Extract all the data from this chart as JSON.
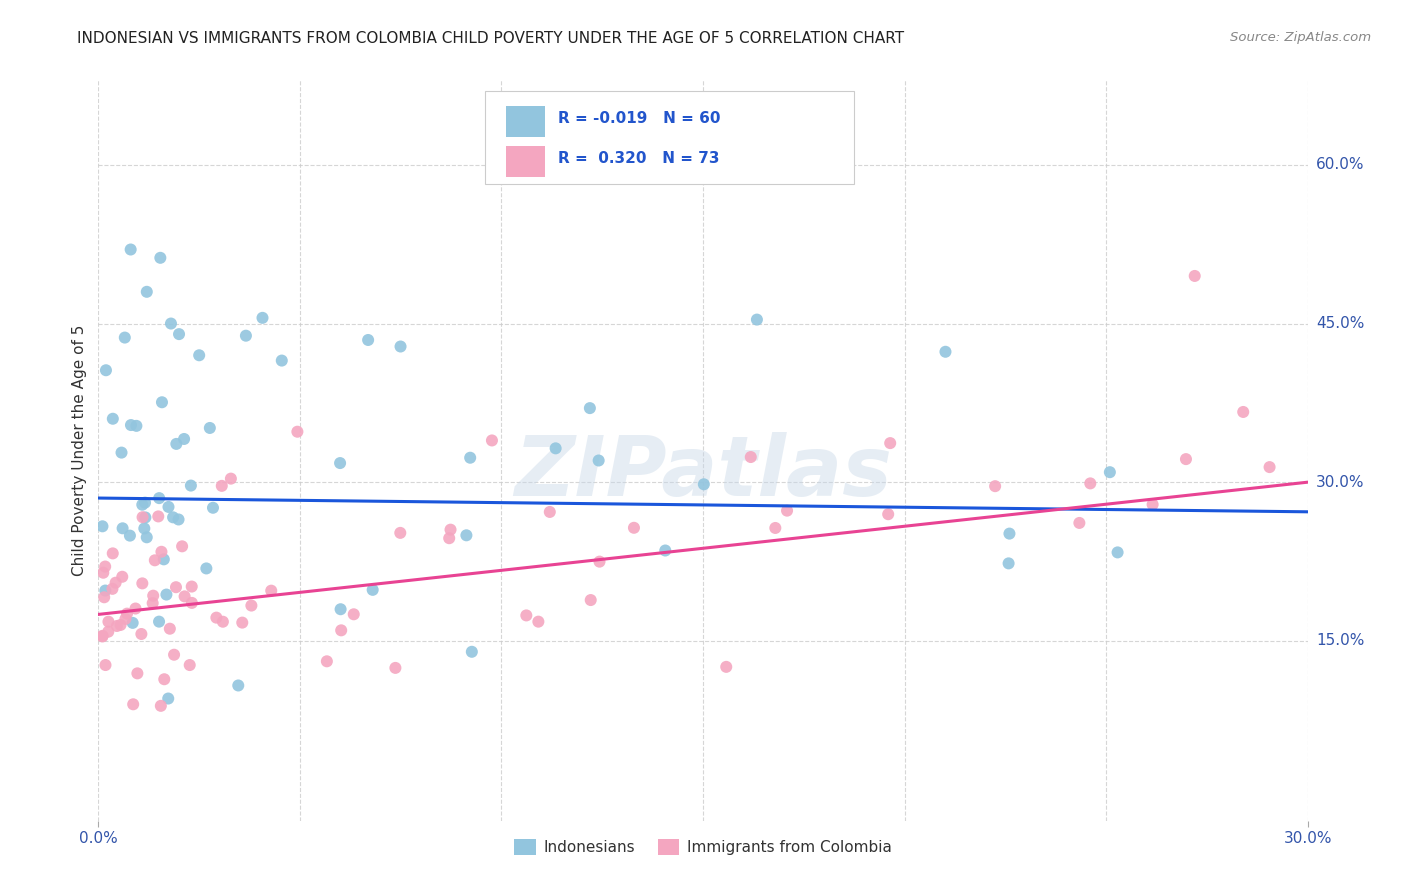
{
  "title": "INDONESIAN VS IMMIGRANTS FROM COLOMBIA CHILD POVERTY UNDER THE AGE OF 5 CORRELATION CHART",
  "source": "Source: ZipAtlas.com",
  "ylabel": "Child Poverty Under the Age of 5",
  "xlim": [
    0.0,
    0.3
  ],
  "ylim": [
    -0.02,
    0.68
  ],
  "blue_color": "#92c5de",
  "pink_color": "#f4a6c0",
  "blue_line_color": "#1a56db",
  "pink_line_color": "#e84393",
  "grid_color": "#cccccc",
  "background_color": "#ffffff",
  "watermark_text": "ZIPatlas",
  "legend_label1": "Indonesians",
  "legend_label2": "Immigrants from Colombia",
  "ytick_vals": [
    0.15,
    0.3,
    0.45,
    0.6
  ],
  "ytick_labels": [
    "15.0%",
    "30.0%",
    "45.0%",
    "60.0%"
  ],
  "xtick_vals": [
    0.0,
    0.3
  ],
  "xtick_labels": [
    "0.0%",
    "30.0%"
  ],
  "blue_R": -0.019,
  "blue_N": 60,
  "pink_R": 0.32,
  "pink_N": 73,
  "blue_trend_y0": 0.285,
  "blue_trend_y1": 0.272,
  "pink_trend_y0": 0.175,
  "pink_trend_y1": 0.3
}
